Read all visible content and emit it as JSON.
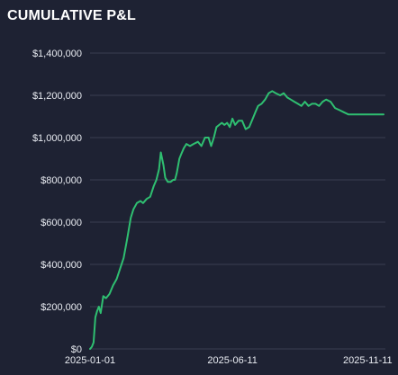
{
  "panel": {
    "title": "CUMULATIVE P&L"
  },
  "colors": {
    "background": "#1e2233",
    "grid": "#3a3f52",
    "line": "#2fbf71",
    "text": "#e9ecf2"
  },
  "chart_data": {
    "type": "line",
    "title": "CUMULATIVE P&L",
    "xlabel": "",
    "ylabel": "",
    "x_range": [
      "2025-01-01",
      "2025-12-01"
    ],
    "ylim": [
      0,
      1400000
    ],
    "y_ticks": [
      0,
      200000,
      400000,
      600000,
      800000,
      1000000,
      1200000,
      1400000
    ],
    "y_tick_labels": [
      "$0",
      "$200,000",
      "$400,000",
      "$600,000",
      "$800,000",
      "$1,000,000",
      "$1,200,000",
      "$1,400,000"
    ],
    "x_ticks": [
      "2025-01-01",
      "2025-06-11",
      "2025-11-11"
    ],
    "x_tick_labels": [
      "2025-01-01",
      "2025-06-11",
      "2025-11-11"
    ],
    "grid": true,
    "legend": "none",
    "series": [
      {
        "x": [
          "2025-01-01",
          "2025-01-03",
          "2025-01-05",
          "2025-01-07",
          "2025-01-09",
          "2025-01-11",
          "2025-01-13",
          "2025-01-16",
          "2025-01-19",
          "2025-01-23",
          "2025-01-27",
          "2025-01-31",
          "2025-02-04",
          "2025-02-08",
          "2025-02-12",
          "2025-02-16",
          "2025-02-19",
          "2025-02-23",
          "2025-02-27",
          "2025-03-02",
          "2025-03-06",
          "2025-03-10",
          "2025-03-14",
          "2025-03-17",
          "2025-03-20",
          "2025-03-22",
          "2025-03-25",
          "2025-03-27",
          "2025-03-30",
          "2025-04-02",
          "2025-04-05",
          "2025-04-07",
          "2025-04-09",
          "2025-04-12",
          "2025-04-14",
          "2025-04-17",
          "2025-04-20",
          "2025-04-24",
          "2025-04-28",
          "2025-05-03",
          "2025-05-07",
          "2025-05-11",
          "2025-05-15",
          "2025-05-18",
          "2025-05-21",
          "2025-05-24",
          "2025-05-27",
          "2025-05-30",
          "2025-06-02",
          "2025-06-05",
          "2025-06-08",
          "2025-06-11",
          "2025-06-14",
          "2025-06-18",
          "2025-06-22",
          "2025-06-26",
          "2025-06-30",
          "2025-07-04",
          "2025-07-07",
          "2025-07-10",
          "2025-07-14",
          "2025-07-18",
          "2025-07-22",
          "2025-07-26",
          "2025-07-30",
          "2025-08-04",
          "2025-08-08",
          "2025-08-12",
          "2025-08-16",
          "2025-08-20",
          "2025-08-24",
          "2025-08-28",
          "2025-09-01",
          "2025-09-05",
          "2025-09-09",
          "2025-09-13",
          "2025-09-17",
          "2025-09-21",
          "2025-09-25",
          "2025-09-30",
          "2025-10-05",
          "2025-10-10",
          "2025-10-15",
          "2025-10-20",
          "2025-10-25",
          "2025-10-30",
          "2025-11-04",
          "2025-11-09",
          "2025-11-14",
          "2025-11-19",
          "2025-11-24",
          "2025-11-29"
        ],
        "y": [
          0,
          10000,
          30000,
          150000,
          180000,
          200000,
          170000,
          250000,
          240000,
          260000,
          300000,
          330000,
          380000,
          430000,
          520000,
          620000,
          660000,
          690000,
          700000,
          690000,
          710000,
          720000,
          770000,
          800000,
          850000,
          930000,
          870000,
          810000,
          790000,
          790000,
          800000,
          800000,
          830000,
          900000,
          920000,
          950000,
          970000,
          960000,
          970000,
          980000,
          960000,
          1000000,
          1000000,
          960000,
          1000000,
          1050000,
          1060000,
          1070000,
          1060000,
          1070000,
          1050000,
          1090000,
          1060000,
          1080000,
          1080000,
          1040000,
          1050000,
          1090000,
          1120000,
          1150000,
          1160000,
          1180000,
          1210000,
          1220000,
          1210000,
          1200000,
          1210000,
          1190000,
          1180000,
          1170000,
          1160000,
          1150000,
          1170000,
          1150000,
          1160000,
          1160000,
          1150000,
          1170000,
          1180000,
          1170000,
          1140000,
          1130000,
          1120000,
          1110000,
          1110000,
          1110000,
          1110000,
          1110000,
          1110000,
          1110000,
          1110000,
          1110000
        ]
      }
    ]
  }
}
